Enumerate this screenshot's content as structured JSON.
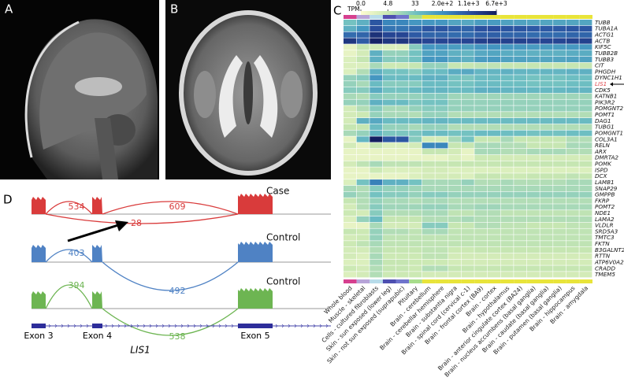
{
  "panel_a": {
    "label": "A"
  },
  "panel_b": {
    "label": "B"
  },
  "panel_c": {
    "label": "C",
    "type": "heatmap",
    "legend_title": "TPM",
    "scale": "log",
    "colorbar_ticks": [
      {
        "value": 0,
        "label": "0.0"
      },
      4.8,
      33,
      {
        "value": 200,
        "label": "2.0e+2"
      },
      {
        "value": 1100,
        "label": "1.1e+3"
      },
      {
        "value": 6700,
        "label": "6.7e+3"
      }
    ],
    "colors": [
      "#fbfbcf",
      "#c8e7b2",
      "#6fc0c2",
      "#3d8fc1",
      "#2a4e9e",
      "#121b5c"
    ],
    "tissues": [
      "Whole blood",
      "Muscle - skeletal",
      "Cells - cultured fibroblasts",
      "Skin - sun exposed (lower leg)",
      "Skin - not sun exposed (suprapubic)",
      "Pituitary",
      "Brain - cerebellum",
      "Brain - cerebellar hemisphere",
      "Brain - substantia nigra",
      "Brain - spinal cord (cervical c-1)",
      "Brain - frontal cortex (BA9)",
      "Brain - cortex",
      "Brain - hypothalamus",
      "Brain - anterior cingulate cortex (BA24)",
      "Brain - nucleus accumbens (basal ganglia)",
      "Brain - caudate (basal ganglia)",
      "Brain - putamen (basal ganglia)",
      "Brain - hippocampus",
      "Brain - amygdala"
    ],
    "tissue_colors": [
      "#d6408f",
      "#b7a4d8",
      "#b8dcea",
      "#4d4fb0",
      "#6f74cc",
      "#a8dd8c",
      "#e8e43a",
      "#e8e43a",
      "#e8e43a",
      "#e8e43a",
      "#e8e43a",
      "#e8e43a",
      "#e8e43a",
      "#e8e43a",
      "#e8e43a",
      "#e8e43a",
      "#e8e43a",
      "#e8e43a",
      "#e8e43a"
    ],
    "genes": [
      "TUBB",
      "TUBA1A",
      "ACTG1",
      "ACTB",
      "KIF5C",
      "TUBB2B",
      "TUBB3",
      "CIT",
      "PHGDH",
      "DYNC1H1",
      {
        "name": "LIS1",
        "color": "#e0474c"
      },
      "CDK5",
      "KATNB1",
      "PIK3R2",
      "POMGNT2",
      "POMT1",
      "DAG1",
      "TUBG1",
      "POMGNT1",
      "COL3A1",
      "RELN",
      "ARX",
      "DMRTA2",
      "POMK",
      "ISPD",
      "DCX",
      "LAMB1",
      "SNAP29",
      "GMPPB",
      "FKRP",
      "POMT2",
      "NDE1",
      "LAMA2",
      "VLDLR",
      "SRD5A3",
      "TMTC3",
      "FKTN",
      "B3GALNT2",
      "RTTN",
      "ATP6V0A2",
      "CRADD",
      "TMEM5"
    ],
    "values": [
      [
        30,
        60,
        900,
        250,
        250,
        150,
        150,
        150,
        90,
        80,
        120,
        130,
        100,
        100,
        90,
        90,
        90,
        90,
        90
      ],
      [
        60,
        150,
        1200,
        400,
        400,
        500,
        900,
        900,
        700,
        600,
        1000,
        1100,
        900,
        900,
        800,
        800,
        800,
        900,
        900
      ],
      [
        500,
        600,
        3000,
        1500,
        1500,
        800,
        600,
        600,
        500,
        500,
        700,
        700,
        600,
        600,
        500,
        500,
        500,
        600,
        600
      ],
      [
        2500,
        800,
        5000,
        2500,
        2500,
        2000,
        1500,
        1500,
        1500,
        1500,
        1800,
        2000,
        1700,
        1700,
        1500,
        1500,
        1500,
        1700,
        1700
      ],
      [
        1,
        5,
        3,
        2,
        2,
        20,
        150,
        150,
        120,
        100,
        150,
        160,
        140,
        140,
        130,
        130,
        130,
        140,
        140
      ],
      [
        1,
        3,
        60,
        15,
        15,
        30,
        100,
        100,
        60,
        50,
        80,
        90,
        70,
        70,
        60,
        60,
        60,
        70,
        70
      ],
      [
        2,
        5,
        60,
        20,
        20,
        30,
        150,
        150,
        80,
        60,
        120,
        130,
        100,
        100,
        90,
        90,
        90,
        100,
        100
      ],
      [
        2,
        2,
        10,
        4,
        4,
        5,
        15,
        15,
        5,
        5,
        6,
        6,
        5,
        5,
        5,
        5,
        5,
        5,
        5
      ],
      [
        2,
        8,
        60,
        30,
        30,
        20,
        40,
        40,
        70,
        80,
        50,
        50,
        60,
        50,
        50,
        50,
        50,
        60,
        60
      ],
      [
        15,
        20,
        150,
        40,
        40,
        40,
        60,
        60,
        30,
        25,
        40,
        40,
        35,
        35,
        30,
        30,
        30,
        35,
        35
      ],
      [
        15,
        10,
        40,
        20,
        20,
        20,
        40,
        40,
        30,
        30,
        40,
        40,
        35,
        35,
        30,
        30,
        30,
        35,
        35
      ],
      [
        20,
        20,
        70,
        30,
        30,
        40,
        50,
        50,
        40,
        40,
        60,
        60,
        50,
        50,
        45,
        45,
        45,
        50,
        50
      ],
      [
        10,
        8,
        20,
        15,
        15,
        15,
        20,
        20,
        12,
        12,
        12,
        12,
        12,
        12,
        12,
        12,
        12,
        12,
        12
      ],
      [
        15,
        15,
        60,
        40,
        40,
        25,
        30,
        30,
        15,
        15,
        15,
        15,
        15,
        15,
        15,
        15,
        15,
        15,
        15
      ],
      [
        3,
        8,
        20,
        10,
        10,
        15,
        20,
        20,
        15,
        15,
        15,
        15,
        15,
        15,
        15,
        15,
        15,
        15,
        15
      ],
      [
        3,
        4,
        15,
        10,
        10,
        8,
        15,
        15,
        8,
        8,
        8,
        8,
        8,
        8,
        8,
        8,
        8,
        8,
        8
      ],
      [
        3,
        60,
        80,
        40,
        40,
        40,
        50,
        50,
        40,
        40,
        40,
        40,
        40,
        40,
        40,
        40,
        40,
        40,
        40
      ],
      [
        5,
        5,
        40,
        15,
        15,
        10,
        15,
        15,
        8,
        8,
        8,
        8,
        8,
        8,
        8,
        8,
        8,
        8,
        8
      ],
      [
        10,
        15,
        50,
        25,
        25,
        25,
        40,
        40,
        30,
        30,
        40,
        40,
        35,
        35,
        30,
        30,
        30,
        35,
        35
      ],
      [
        1,
        50,
        6000,
        900,
        900,
        20,
        3,
        3,
        10,
        30,
        5,
        5,
        10,
        5,
        5,
        5,
        5,
        8,
        8
      ],
      [
        3,
        1,
        5,
        2,
        2,
        3,
        250,
        250,
        5,
        5,
        10,
        10,
        8,
        8,
        5,
        5,
        5,
        10,
        10
      ],
      [
        1,
        1,
        1,
        1,
        1,
        1,
        5,
        5,
        3,
        1,
        10,
        10,
        8,
        8,
        10,
        10,
        10,
        8,
        8
      ],
      [
        1,
        1,
        1,
        1,
        1,
        1,
        1,
        1,
        2,
        1,
        4,
        4,
        3,
        3,
        3,
        3,
        3,
        3,
        3
      ],
      [
        3,
        6,
        10,
        6,
        6,
        6,
        5,
        5,
        5,
        5,
        5,
        5,
        5,
        5,
        5,
        5,
        5,
        5,
        5
      ],
      [
        1,
        1,
        4,
        2,
        2,
        2,
        3,
        3,
        2,
        2,
        2,
        2,
        2,
        2,
        2,
        2,
        2,
        2,
        2
      ],
      [
        1,
        1,
        1,
        1,
        1,
        2,
        3,
        3,
        3,
        2,
        5,
        5,
        4,
        4,
        5,
        5,
        5,
        6,
        5
      ],
      [
        2,
        30,
        300,
        60,
        60,
        30,
        10,
        10,
        10,
        15,
        8,
        8,
        10,
        8,
        8,
        8,
        8,
        10,
        10
      ],
      [
        10,
        8,
        20,
        15,
        15,
        12,
        10,
        10,
        10,
        10,
        10,
        10,
        10,
        10,
        10,
        10,
        10,
        10,
        10
      ],
      [
        15,
        10,
        30,
        20,
        20,
        15,
        20,
        20,
        15,
        15,
        15,
        15,
        15,
        15,
        15,
        15,
        15,
        15,
        15
      ],
      [
        5,
        8,
        15,
        10,
        10,
        8,
        10,
        10,
        8,
        8,
        8,
        8,
        8,
        8,
        8,
        8,
        8,
        8,
        8
      ],
      [
        3,
        8,
        20,
        12,
        12,
        12,
        15,
        15,
        10,
        10,
        12,
        12,
        10,
        10,
        10,
        10,
        10,
        10,
        10
      ],
      [
        4,
        3,
        20,
        8,
        8,
        8,
        10,
        10,
        6,
        6,
        8,
        8,
        6,
        6,
        6,
        6,
        6,
        6,
        6
      ],
      [
        2,
        15,
        40,
        5,
        5,
        5,
        8,
        8,
        8,
        10,
        8,
        8,
        8,
        8,
        8,
        8,
        8,
        8,
        8
      ],
      [
        1,
        1,
        10,
        3,
        3,
        3,
        20,
        20,
        5,
        5,
        8,
        8,
        6,
        6,
        5,
        5,
        5,
        6,
        6
      ],
      [
        5,
        4,
        15,
        8,
        8,
        6,
        10,
        10,
        6,
        6,
        6,
        6,
        6,
        6,
        6,
        6,
        6,
        6,
        6
      ],
      [
        3,
        4,
        15,
        6,
        6,
        6,
        6,
        6,
        6,
        6,
        6,
        6,
        6,
        6,
        6,
        6,
        6,
        6,
        6
      ],
      [
        4,
        6,
        10,
        6,
        6,
        6,
        6,
        6,
        6,
        6,
        6,
        6,
        6,
        6,
        6,
        6,
        6,
        6,
        6
      ],
      [
        3,
        3,
        8,
        5,
        5,
        5,
        6,
        6,
        4,
        4,
        5,
        5,
        5,
        5,
        5,
        5,
        5,
        5,
        5
      ],
      [
        3,
        2,
        10,
        4,
        4,
        4,
        6,
        6,
        3,
        3,
        3,
        3,
        3,
        3,
        3,
        3,
        3,
        3,
        3
      ],
      [
        2,
        2,
        10,
        5,
        5,
        4,
        4,
        4,
        3,
        3,
        3,
        3,
        3,
        3,
        3,
        3,
        3,
        3,
        3
      ],
      [
        4,
        3,
        8,
        5,
        5,
        4,
        8,
        8,
        5,
        5,
        5,
        5,
        5,
        5,
        5,
        5,
        5,
        5,
        5
      ],
      [
        2,
        3,
        8,
        4,
        4,
        4,
        3,
        3,
        3,
        3,
        3,
        3,
        3,
        3,
        3,
        3,
        3,
        3,
        3
      ]
    ]
  },
  "panel_d": {
    "label": "D",
    "tracks": [
      {
        "name": "Case",
        "color": "#d93b3b",
        "junctions": [
          534,
          609,
          28
        ]
      },
      {
        "name": "Control",
        "color": "#4f82c4",
        "junctions": [
          403,
          492
        ]
      },
      {
        "name": "Control",
        "color": "#6db552",
        "junctions": [
          394,
          538
        ]
      }
    ],
    "exons": [
      "Exon 3",
      "Exon 4",
      "Exon 5"
    ],
    "gene": "LIS1"
  }
}
